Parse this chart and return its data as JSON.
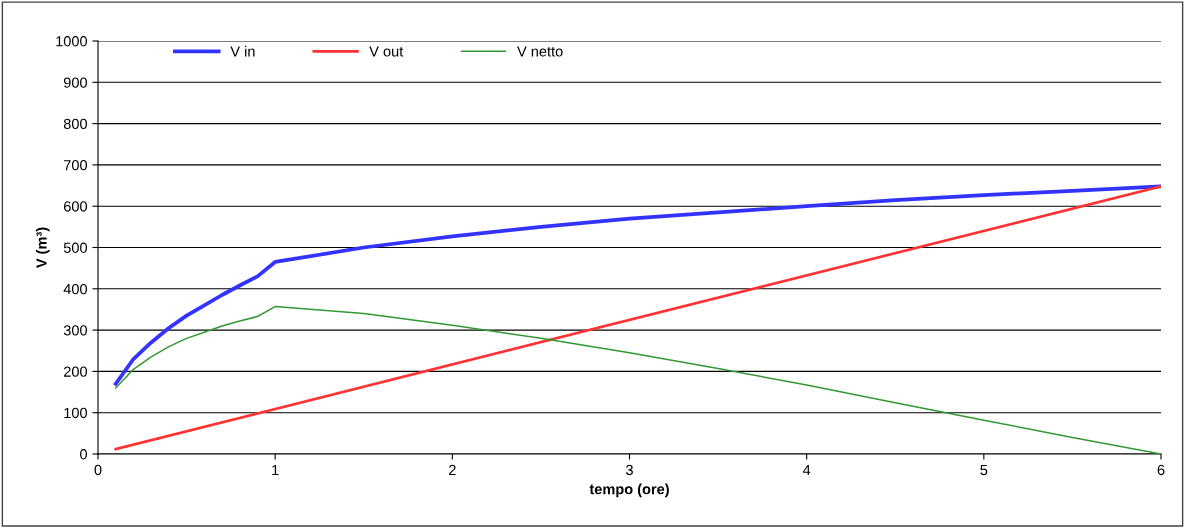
{
  "chart_data": {
    "type": "line",
    "xlabel": "tempo (ore)",
    "ylabel": "V (m³)",
    "xlim": [
      0,
      6
    ],
    "xticks": [
      0,
      1,
      2,
      3,
      4,
      5,
      6
    ],
    "ylim": [
      0,
      1000
    ],
    "yticks": [
      0,
      100,
      200,
      300,
      400,
      500,
      600,
      700,
      800,
      900,
      1000
    ],
    "grid": "y",
    "legend": "top left",
    "marker": "none",
    "line_style": "solid",
    "series": [
      {
        "name": "V in",
        "color": "#3333ff",
        "x": [
          0.1,
          0.2,
          0.3,
          0.4,
          0.5,
          0.6,
          0.7,
          0.8,
          0.9,
          1.0,
          1.5,
          2,
          2.5,
          3,
          3.5,
          4,
          4.5,
          5,
          5.5,
          6
        ],
        "values": [
          170,
          230,
          270,
          305,
          335,
          360,
          385,
          408,
          430,
          465,
          500,
          527,
          550,
          570,
          585,
          600,
          615,
          627,
          637,
          648
        ]
      },
      {
        "name": "V out",
        "color": "#ff3333",
        "x": [
          0.1,
          6
        ],
        "values": [
          12,
          648
        ]
      },
      {
        "name": "V netto",
        "color": "#339933",
        "x": [
          0.1,
          0.2,
          0.3,
          0.4,
          0.5,
          0.6,
          0.7,
          0.8,
          0.9,
          1.0,
          1.5,
          2,
          2.5,
          3,
          3.5,
          4,
          4.5,
          5,
          5.5,
          6
        ],
        "values": [
          160,
          205,
          235,
          260,
          280,
          295,
          310,
          322,
          333,
          357,
          340,
          312,
          280,
          245,
          207,
          167,
          124,
          82,
          40,
          0
        ]
      }
    ]
  }
}
